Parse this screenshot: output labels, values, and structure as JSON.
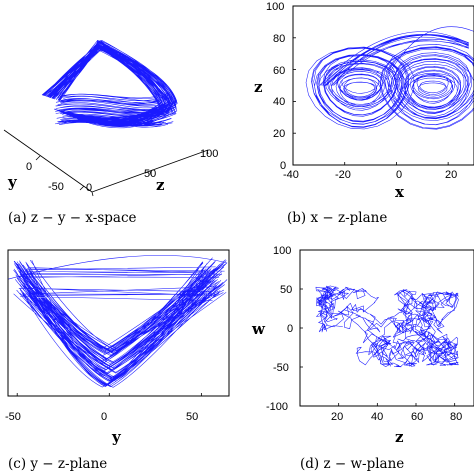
{
  "colors": {
    "trajectory": "#1a1aff",
    "axes": "#000000",
    "background": "#ffffff"
  },
  "chart_data": [
    {
      "type": "line",
      "view": "3d",
      "caption": "(a) z − y − x-space",
      "zlabel": "z",
      "ylabel": "y",
      "z_ticks": [
        "0",
        "50",
        "100"
      ],
      "y_ticks": [
        "0",
        "-50"
      ],
      "zlim": [
        0,
        100
      ],
      "ylim": [
        -50,
        50
      ],
      "grid": false
    },
    {
      "type": "line",
      "caption": "(b) x − z-plane",
      "xlabel": "x",
      "ylabel": "z",
      "xlim": [
        -40,
        30
      ],
      "ylim": [
        0,
        100
      ],
      "x_ticks": [
        "-40",
        "-20",
        "0",
        "20"
      ],
      "y_ticks": [
        "0",
        "20",
        "40",
        "60",
        "80",
        "100"
      ],
      "grid": false
    },
    {
      "type": "line",
      "caption": "(c) y − z-plane",
      "xlabel": "y",
      "ylabel": "",
      "xlim": [
        -55,
        65
      ],
      "ylim": [
        0,
        90
      ],
      "x_ticks": [
        "-50",
        "0",
        "50"
      ],
      "grid": false
    },
    {
      "type": "line",
      "caption": "(d) z − w-plane",
      "xlabel": "z",
      "ylabel": "w",
      "xlim": [
        0,
        90
      ],
      "ylim": [
        -100,
        100
      ],
      "x_ticks": [
        "20",
        "40",
        "60",
        "80"
      ],
      "y_ticks": [
        "-100",
        "-50",
        "0",
        "50",
        "100"
      ],
      "grid": false
    }
  ]
}
